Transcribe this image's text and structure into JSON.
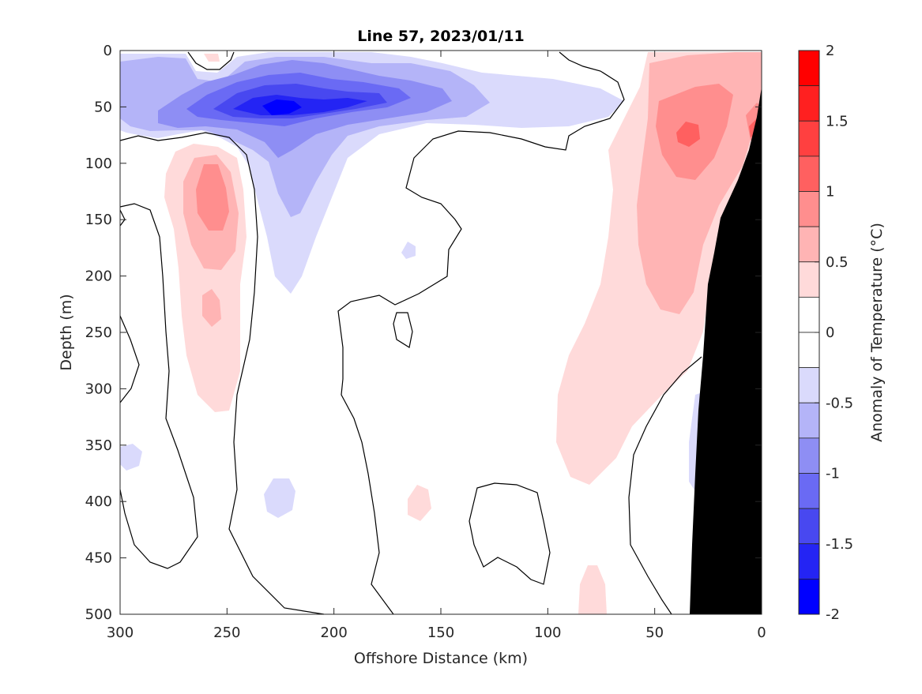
{
  "chart_data": {
    "type": "heatmap",
    "title": "Line 57, 2023/01/11",
    "xlabel": "Offshore Distance (km)",
    "ylabel": "Depth (m)",
    "xlim": [
      300,
      0
    ],
    "ylim": [
      0,
      500
    ],
    "x_reversed": true,
    "y_reversed": true,
    "x_ticks": [
      "300",
      "250",
      "200",
      "150",
      "100",
      "50",
      "0"
    ],
    "y_ticks": [
      "0",
      "50",
      "100",
      "150",
      "200",
      "250",
      "300",
      "350",
      "400",
      "450",
      "500"
    ],
    "colorbar": {
      "label": "Anomaly of Temperature (°C)",
      "tick_labels": [
        "2",
        "1.5",
        "1",
        "0.5",
        "0",
        "-0.5",
        "-1",
        "-1.5",
        "-2"
      ],
      "range": [
        -2,
        2
      ],
      "levels": [
        {
          "lo": 1.75,
          "hi": 2.0,
          "color": "#ff0000"
        },
        {
          "lo": 1.5,
          "hi": 1.75,
          "color": "#ff2020"
        },
        {
          "lo": 1.25,
          "hi": 1.5,
          "color": "#ff4040"
        },
        {
          "lo": 1.0,
          "hi": 1.25,
          "color": "#ff6060"
        },
        {
          "lo": 0.75,
          "hi": 1.0,
          "color": "#ff8e8e"
        },
        {
          "lo": 0.5,
          "hi": 0.75,
          "color": "#ffb4b4"
        },
        {
          "lo": 0.25,
          "hi": 0.5,
          "color": "#ffdada"
        },
        {
          "lo": 0.0,
          "hi": 0.25,
          "color": "#ffffff"
        },
        {
          "lo": -0.25,
          "hi": 0.0,
          "color": "#ffffff"
        },
        {
          "lo": -0.5,
          "hi": -0.25,
          "color": "#dadafc"
        },
        {
          "lo": -0.75,
          "hi": -0.5,
          "color": "#b4b4f8"
        },
        {
          "lo": -1.0,
          "hi": -0.75,
          "color": "#8e8ef4"
        },
        {
          "lo": -1.25,
          "hi": -1.0,
          "color": "#6a6af4"
        },
        {
          "lo": -1.5,
          "hi": -1.25,
          "color": "#4848f0"
        },
        {
          "lo": -1.75,
          "hi": -1.5,
          "color": "#2424f4"
        },
        {
          "lo": -2.0,
          "hi": -1.75,
          "color": "#0000ff"
        }
      ]
    },
    "features": [
      {
        "name": "Cold core near 50 m",
        "x_range_km": [
          170,
          260
        ],
        "depth_range_m": [
          30,
          75
        ],
        "min_anomaly": -1.75
      },
      {
        "name": "Warm anomaly offshore",
        "x_range_km": [
          245,
          275
        ],
        "depth_range_m": [
          100,
          160
        ],
        "max_anomaly": 1.0
      },
      {
        "name": "Warm coastal band",
        "x_range_km": [
          0,
          70
        ],
        "depth_range_m": [
          0,
          380
        ],
        "max_anomaly": 1.25
      },
      {
        "name": "Bathymetry (land mask)",
        "x_at_surface_km": 0,
        "x_at_500m_km": 33
      }
    ]
  }
}
